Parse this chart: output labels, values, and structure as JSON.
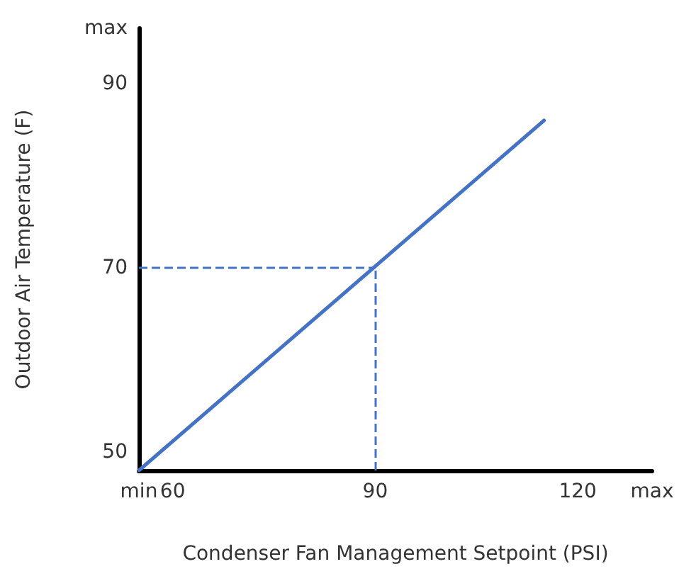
{
  "chart_data": {
    "type": "line",
    "xlabel": "Condenser Fan Management Setpoint (PSI)",
    "ylabel": "Outdoor Air Temperature (F)",
    "x": [
      55,
      115
    ],
    "series": [
      {
        "color": "#4472c4",
        "values": [
          48,
          86
        ]
      }
    ],
    "xlim": [
      55,
      131
    ],
    "xticks": [
      {
        "value": 55,
        "label": "min"
      },
      60,
      90,
      120,
      {
        "value": 131,
        "label": "max"
      }
    ],
    "ylim": [
      48,
      96
    ],
    "yticks": [
      50,
      70,
      90,
      {
        "value": 96,
        "label": "max"
      }
    ],
    "ref_lines": [
      {
        "axis": "x",
        "value": 90,
        "color": "#4472c4",
        "line_style": "dashed"
      },
      {
        "axis": "y",
        "value": 70,
        "color": "#4472c4",
        "line_style": "dashed"
      }
    ],
    "grid": false,
    "marker": "none",
    "line_style": "solid"
  }
}
